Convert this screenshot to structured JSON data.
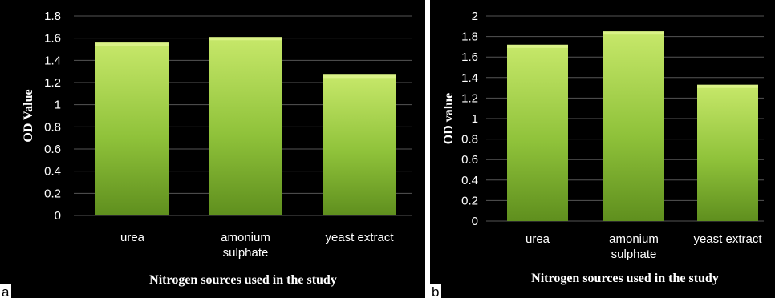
{
  "colors": {
    "background": "#000000",
    "bar_top": "#c7e86a",
    "bar_bottom": "#5f8f1e",
    "grid": "#555555",
    "text": "#ffffff"
  },
  "chart_data": [
    {
      "type": "bar",
      "panel_label": "a",
      "categories": [
        "urea",
        "amonium sulphate",
        "yeast extract"
      ],
      "category_lines": [
        [
          "urea"
        ],
        [
          "amonium",
          "sulphate"
        ],
        [
          "yeast extract"
        ]
      ],
      "values": [
        1.56,
        1.61,
        1.27
      ],
      "ylim": [
        0,
        1.8
      ],
      "ytick_step": 0.2,
      "yticks": [
        "0",
        "0.2",
        "0.4",
        "0.6",
        "0.8",
        "1",
        "1.2",
        "1.4",
        "1.6",
        "1.8"
      ],
      "xlabel": "Nitrogen sources used in the study",
      "ylabel": "OD Value",
      "grid": true
    },
    {
      "type": "bar",
      "panel_label": "b",
      "categories": [
        "urea",
        "amonium sulphate",
        "yeast extract"
      ],
      "category_lines": [
        [
          "urea"
        ],
        [
          "amonium",
          "sulphate"
        ],
        [
          "yeast extract"
        ]
      ],
      "values": [
        1.72,
        1.85,
        1.33
      ],
      "ylim": [
        0,
        2
      ],
      "ytick_step": 0.2,
      "yticks": [
        "0",
        "0.2",
        "0.4",
        "0.6",
        "0.8",
        "1",
        "1.2",
        "1.4",
        "1.6",
        "1.8",
        "2"
      ],
      "xlabel": "Nitrogen sources used in the study",
      "ylabel": "OD value",
      "grid": true
    }
  ]
}
